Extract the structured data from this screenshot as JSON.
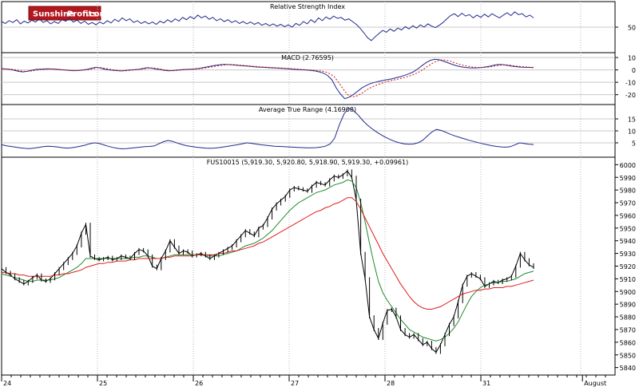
{
  "logo": {
    "brand_a": "Sunshine",
    "brand_b": "Profits",
    "suffix": ".com"
  },
  "chart_data": [
    {
      "type": "line",
      "title": "Relative Strength Index",
      "y_ticks": [
        {
          "value": 50,
          "label": "50"
        }
      ],
      "ylim": [
        0,
        100
      ],
      "grid": true,
      "series": [
        {
          "color": "#1f2a8c",
          "values": [
            62,
            58,
            64,
            60,
            66,
            57,
            63,
            59,
            65,
            61,
            68,
            60,
            64,
            57,
            62,
            58,
            66,
            63,
            69,
            61,
            65,
            58,
            63,
            56,
            60,
            55,
            61,
            57,
            64,
            59,
            67,
            62,
            70,
            64,
            68,
            60,
            64,
            58,
            62,
            57,
            61,
            56,
            63,
            59,
            66,
            61,
            68,
            63,
            71,
            66,
            73,
            68,
            76,
            70,
            74,
            67,
            71,
            64,
            68,
            62,
            66,
            60,
            64,
            58,
            62,
            57,
            61,
            56,
            60,
            54,
            58,
            53,
            57,
            52,
            56,
            51,
            55,
            50,
            58,
            54,
            62,
            57,
            66,
            60,
            70,
            64,
            72,
            67,
            74,
            69,
            71,
            65,
            68,
            62,
            56,
            48,
            38,
            27,
            21,
            29,
            36,
            43,
            39,
            46,
            41,
            48,
            44,
            51,
            46,
            53,
            48,
            55,
            50,
            57,
            52,
            49,
            54,
            60,
            68,
            75,
            79,
            73,
            80,
            74,
            77,
            70,
            76,
            71,
            78,
            72,
            79,
            74,
            70,
            76,
            81,
            75,
            83,
            77,
            79,
            72,
            76,
            70
          ]
        }
      ]
    },
    {
      "type": "line",
      "title": "MACD (2.76595)",
      "y_ticks": [
        {
          "value": 10,
          "label": "10"
        },
        {
          "value": 0,
          "label": "0"
        },
        {
          "value": -10,
          "label": "-10"
        },
        {
          "value": -20,
          "label": "-20"
        }
      ],
      "ylim": [
        -26,
        12
      ],
      "grid": true,
      "series": [
        {
          "color": "#1f2a8c",
          "values": [
            1.0,
            0.8,
            0.4,
            -0.3,
            -1.2,
            -1.6,
            -1.0,
            -0.3,
            0.4,
            0.6,
            0.8,
            0.9,
            0.7,
            0.4,
            0.1,
            -0.2,
            -0.5,
            -0.6,
            -0.4,
            0.0,
            0.5,
            1.4,
            2.2,
            1.6,
            0.6,
            0.1,
            -0.3,
            -0.6,
            -0.8,
            -0.4,
            0.0,
            0.3,
            0.5,
            1.2,
            1.8,
            1.4,
            0.7,
            0.2,
            -0.4,
            -0.7,
            -0.5,
            -0.1,
            0.2,
            0.4,
            0.6,
            0.8,
            1.2,
            1.8,
            2.5,
            3.2,
            3.8,
            4.2,
            4.5,
            4.3,
            4.0,
            3.7,
            3.4,
            3.1,
            2.8,
            2.5,
            2.3,
            2.1,
            1.9,
            1.7,
            1.5,
            1.3,
            1.1,
            0.8,
            0.5,
            0.3,
            0.1,
            -0.1,
            -0.4,
            -0.8,
            -1.5,
            -2.6,
            -4.5,
            -8.0,
            -14.5,
            -19.5,
            -23.2,
            -22.0,
            -19.8,
            -17.2,
            -14.5,
            -12.6,
            -11.0,
            -10.0,
            -9.2,
            -8.5,
            -7.8,
            -7.1,
            -6.3,
            -5.4,
            -4.3,
            -3.0,
            -1.5,
            0.8,
            3.5,
            6.0,
            7.8,
            8.6,
            8.2,
            7.1,
            5.8,
            4.5,
            3.4,
            2.6,
            2.0,
            1.7,
            1.6,
            1.7,
            2.0,
            2.5,
            3.2,
            4.0,
            4.4,
            4.2,
            3.6,
            3.0,
            2.6,
            2.3,
            2.1,
            2.0,
            1.9
          ]
        },
        {
          "color": "#d01010",
          "values": [
            0.6,
            0.7,
            0.6,
            0.2,
            -0.5,
            -1.1,
            -1.2,
            -0.8,
            -0.2,
            0.2,
            0.5,
            0.7,
            0.8,
            0.6,
            0.3,
            0.0,
            -0.3,
            -0.5,
            -0.5,
            -0.2,
            0.2,
            0.9,
            1.7,
            1.8,
            1.2,
            0.5,
            0.0,
            -0.4,
            -0.7,
            -0.6,
            -0.2,
            0.1,
            0.4,
            0.9,
            1.5,
            1.6,
            1.1,
            0.5,
            -0.1,
            -0.5,
            -0.6,
            -0.3,
            0.0,
            0.3,
            0.5,
            0.7,
            1.0,
            1.5,
            2.1,
            2.7,
            3.3,
            3.8,
            4.2,
            4.4,
            4.2,
            3.9,
            3.6,
            3.3,
            3.0,
            2.7,
            2.5,
            2.3,
            2.1,
            1.9,
            1.7,
            1.5,
            1.3,
            1.0,
            0.8,
            0.5,
            0.3,
            0.1,
            -0.2,
            -0.5,
            -1.0,
            -1.8,
            -3.2,
            -5.8,
            -10.5,
            -15.5,
            -20.0,
            -21.8,
            -21.2,
            -19.5,
            -17.2,
            -15.0,
            -13.2,
            -11.8,
            -10.6,
            -9.6,
            -8.7,
            -7.9,
            -7.1,
            -6.2,
            -5.2,
            -4.0,
            -2.6,
            -0.7,
            1.6,
            4.0,
            6.2,
            7.6,
            8.2,
            7.7,
            6.7,
            5.5,
            4.4,
            3.5,
            2.8,
            2.3,
            2.0,
            1.9,
            2.1,
            2.5,
            3.1,
            3.7,
            4.1,
            4.0,
            3.6,
            3.1,
            2.7,
            2.4,
            2.2,
            2.1
          ]
        }
      ]
    },
    {
      "type": "line",
      "title": "Average True Range (4.16908)",
      "y_ticks": [
        {
          "value": 15,
          "label": "15"
        },
        {
          "value": 10,
          "label": "10"
        },
        {
          "value": 5,
          "label": "5"
        }
      ],
      "ylim": [
        0,
        20
      ],
      "grid": true,
      "series": [
        {
          "color": "#1f2a8c",
          "values": [
            4.2,
            3.8,
            3.5,
            3.2,
            2.9,
            2.7,
            2.6,
            2.8,
            3.1,
            3.4,
            3.6,
            3.5,
            3.3,
            3.0,
            2.8,
            2.9,
            3.2,
            3.6,
            4.0,
            4.6,
            5.0,
            4.8,
            4.2,
            3.6,
            3.1,
            2.7,
            2.5,
            2.6,
            2.8,
            3.0,
            3.2,
            3.4,
            3.5,
            3.7,
            4.6,
            5.5,
            6.0,
            5.6,
            4.9,
            4.3,
            3.8,
            3.5,
            3.2,
            3.0,
            2.8,
            2.7,
            2.8,
            3.0,
            3.3,
            3.6,
            3.9,
            4.2,
            4.6,
            5.0,
            4.8,
            4.5,
            4.2,
            4.0,
            3.8,
            3.6,
            3.5,
            3.4,
            3.3,
            3.2,
            3.1,
            3.0,
            2.9,
            2.9,
            3.0,
            3.2,
            3.6,
            4.5,
            7.0,
            12.5,
            17.0,
            19.5,
            18.6,
            16.8,
            14.5,
            12.6,
            11.0,
            9.6,
            8.4,
            7.3,
            6.4,
            5.6,
            5.0,
            4.6,
            4.4,
            4.5,
            5.0,
            6.0,
            7.8,
            9.5,
            10.6,
            10.2,
            9.4,
            8.6,
            7.9,
            7.3,
            6.7,
            6.1,
            5.6,
            5.1,
            4.6,
            4.2,
            3.8,
            3.5,
            3.3,
            3.2,
            3.4,
            4.2,
            5.0,
            4.7,
            4.4,
            4.3
          ]
        }
      ]
    },
    {
      "type": "line",
      "title": "FUS10015 (5,919.30, 5,920.80, 5,918.90, 5,919.30, +0.09961)",
      "y_ticks": [
        {
          "value": 6000,
          "label": "6000"
        },
        {
          "value": 5990,
          "label": "5990"
        },
        {
          "value": 5980,
          "label": "5980"
        },
        {
          "value": 5970,
          "label": "5970"
        },
        {
          "value": 5960,
          "label": "5960"
        },
        {
          "value": 5950,
          "label": "5950"
        },
        {
          "value": 5940,
          "label": "5940"
        },
        {
          "value": 5930,
          "label": "5930"
        },
        {
          "value": 5920,
          "label": "5920"
        },
        {
          "value": 5910,
          "label": "5910"
        },
        {
          "value": 5900,
          "label": "5900"
        },
        {
          "value": 5890,
          "label": "5890"
        },
        {
          "value": 5880,
          "label": "5880"
        },
        {
          "value": 5870,
          "label": "5870"
        },
        {
          "value": 5860,
          "label": "5860"
        },
        {
          "value": 5850,
          "label": "5850"
        },
        {
          "value": 5840,
          "label": "5840"
        }
      ],
      "ylim": [
        5836,
        6004
      ],
      "grid": false,
      "x_labels": [
        {
          "label": "24",
          "pos": 0
        },
        {
          "label": "25",
          "pos": 1
        },
        {
          "label": "26",
          "pos": 2
        },
        {
          "label": "27",
          "pos": 3
        },
        {
          "label": "28",
          "pos": 4
        },
        {
          "label": "31",
          "pos": 5
        },
        {
          "label": "August",
          "pos": 6.06
        }
      ],
      "series": [
        {
          "name": "price",
          "color": "#000000",
          "values": [
            5918,
            5915,
            5913,
            5910,
            5908,
            5906,
            5908,
            5911,
            5913,
            5909,
            5908,
            5910,
            5914,
            5918,
            5922,
            5926,
            5930,
            5936,
            5946,
            5953,
            5928,
            5926,
            5925,
            5926,
            5927,
            5925,
            5926,
            5928,
            5927,
            5926,
            5930,
            5933,
            5932,
            5928,
            5920,
            5918,
            5926,
            5932,
            5940,
            5935,
            5930,
            5932,
            5931,
            5928,
            5929,
            5930,
            5928,
            5926,
            5928,
            5930,
            5932,
            5934,
            5936,
            5940,
            5944,
            5948,
            5946,
            5944,
            5950,
            5952,
            5958,
            5965,
            5969,
            5972,
            5975,
            5980,
            5982,
            5981,
            5980,
            5979,
            5983,
            5986,
            5985,
            5984,
            5988,
            5991,
            5990,
            5992,
            5995,
            5990,
            5972,
            5930,
            5910,
            5880,
            5870,
            5863,
            5875,
            5885,
            5886,
            5880,
            5870,
            5866,
            5864,
            5866,
            5862,
            5858,
            5860,
            5855,
            5852,
            5858,
            5866,
            5874,
            5880,
            5892,
            5905,
            5912,
            5914,
            5912,
            5910,
            5904,
            5906,
            5908,
            5907,
            5909,
            5910,
            5912,
            5920,
            5930,
            5925,
            5921,
            5919
          ]
        },
        {
          "name": "sma-fast",
          "color": "#1d8a2c",
          "values": [
            5914,
            5913,
            5912,
            5911,
            5910,
            5909,
            5908,
            5908,
            5909,
            5909,
            5909,
            5909,
            5910,
            5911,
            5913,
            5915,
            5917,
            5919,
            5922,
            5926,
            5926,
            5926,
            5926,
            5926,
            5926,
            5926,
            5926,
            5926,
            5926,
            5926,
            5927,
            5927,
            5928,
            5928,
            5927,
            5926,
            5926,
            5927,
            5928,
            5929,
            5929,
            5929,
            5929,
            5929,
            5929,
            5929,
            5928,
            5928,
            5928,
            5928,
            5929,
            5930,
            5931,
            5932,
            5934,
            5936,
            5937,
            5938,
            5940,
            5942,
            5945,
            5948,
            5952,
            5956,
            5960,
            5964,
            5967,
            5970,
            5972,
            5974,
            5976,
            5978,
            5979,
            5980,
            5982,
            5984,
            5985,
            5986,
            5988,
            5987,
            5982,
            5970,
            5955,
            5938,
            5922,
            5908,
            5899,
            5893,
            5888,
            5883,
            5878,
            5874,
            5870,
            5868,
            5866,
            5864,
            5863,
            5862,
            5861,
            5862,
            5864,
            5867,
            5871,
            5876,
            5883,
            5890,
            5896,
            5900,
            5903,
            5905,
            5906,
            5907,
            5907,
            5908,
            5908,
            5909,
            5910,
            5912,
            5914,
            5915,
            5916
          ]
        },
        {
          "name": "sma-slow",
          "color": "#e01c1c",
          "values": [
            5915,
            5915,
            5914,
            5914,
            5913,
            5913,
            5912,
            5912,
            5912,
            5912,
            5912,
            5912,
            5913,
            5913,
            5914,
            5914,
            5915,
            5916,
            5917,
            5919,
            5920,
            5921,
            5922,
            5922,
            5923,
            5923,
            5924,
            5924,
            5924,
            5925,
            5925,
            5926,
            5926,
            5926,
            5926,
            5926,
            5926,
            5927,
            5927,
            5928,
            5928,
            5928,
            5928,
            5928,
            5929,
            5929,
            5929,
            5929,
            5929,
            5930,
            5930,
            5931,
            5932,
            5932,
            5933,
            5934,
            5935,
            5936,
            5938,
            5939,
            5941,
            5943,
            5945,
            5947,
            5949,
            5951,
            5953,
            5955,
            5957,
            5959,
            5961,
            5963,
            5964,
            5966,
            5967,
            5969,
            5970,
            5972,
            5974,
            5974,
            5971,
            5965,
            5958,
            5951,
            5944,
            5937,
            5930,
            5924,
            5918,
            5912,
            5906,
            5901,
            5896,
            5892,
            5889,
            5887,
            5886,
            5886,
            5887,
            5888,
            5890,
            5892,
            5894,
            5896,
            5898,
            5899,
            5900,
            5901,
            5901,
            5902,
            5902,
            5903,
            5903,
            5903,
            5904,
            5904,
            5905,
            5906,
            5907,
            5908,
            5909
          ]
        }
      ]
    }
  ]
}
